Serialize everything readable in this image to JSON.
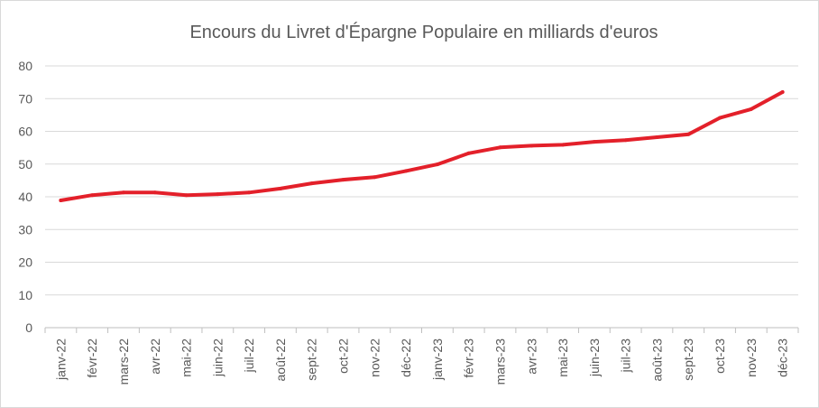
{
  "chart_data": {
    "type": "line",
    "title": "Encours du Livret d'Épargne Populaire en milliards d'euros",
    "xlabel": "",
    "ylabel": "",
    "categories": [
      "janv-22",
      "févr-22",
      "mars-22",
      "avr-22",
      "mai-22",
      "juin-22",
      "juil-22",
      "août-22",
      "sept-22",
      "oct-22",
      "nov-22",
      "déc-22",
      "janv-23",
      "févr-23",
      "mars-23",
      "avr-23",
      "mai-23",
      "juin-23",
      "juil-23",
      "août-23",
      "sept-23",
      "oct-23",
      "nov-23",
      "déc-23"
    ],
    "series": [
      {
        "color": "#e3202a",
        "values": [
          38.9,
          40.5,
          41.3,
          41.3,
          40.5,
          40.8,
          41.3,
          42.5,
          44.1,
          45.2,
          46.0,
          47.9,
          49.9,
          53.3,
          55.1,
          55.6,
          55.9,
          56.8,
          57.3,
          58.2,
          59.1,
          64.1,
          66.8,
          72.0
        ]
      }
    ],
    "ylim": [
      0,
      80
    ],
    "yticks": [
      0,
      10,
      20,
      30,
      40,
      50,
      60,
      70,
      80
    ],
    "grid": true,
    "legend": "none",
    "colors": {
      "grid": "#d9d9d9",
      "axis": "#bfbfbf",
      "text": "#595959"
    }
  }
}
